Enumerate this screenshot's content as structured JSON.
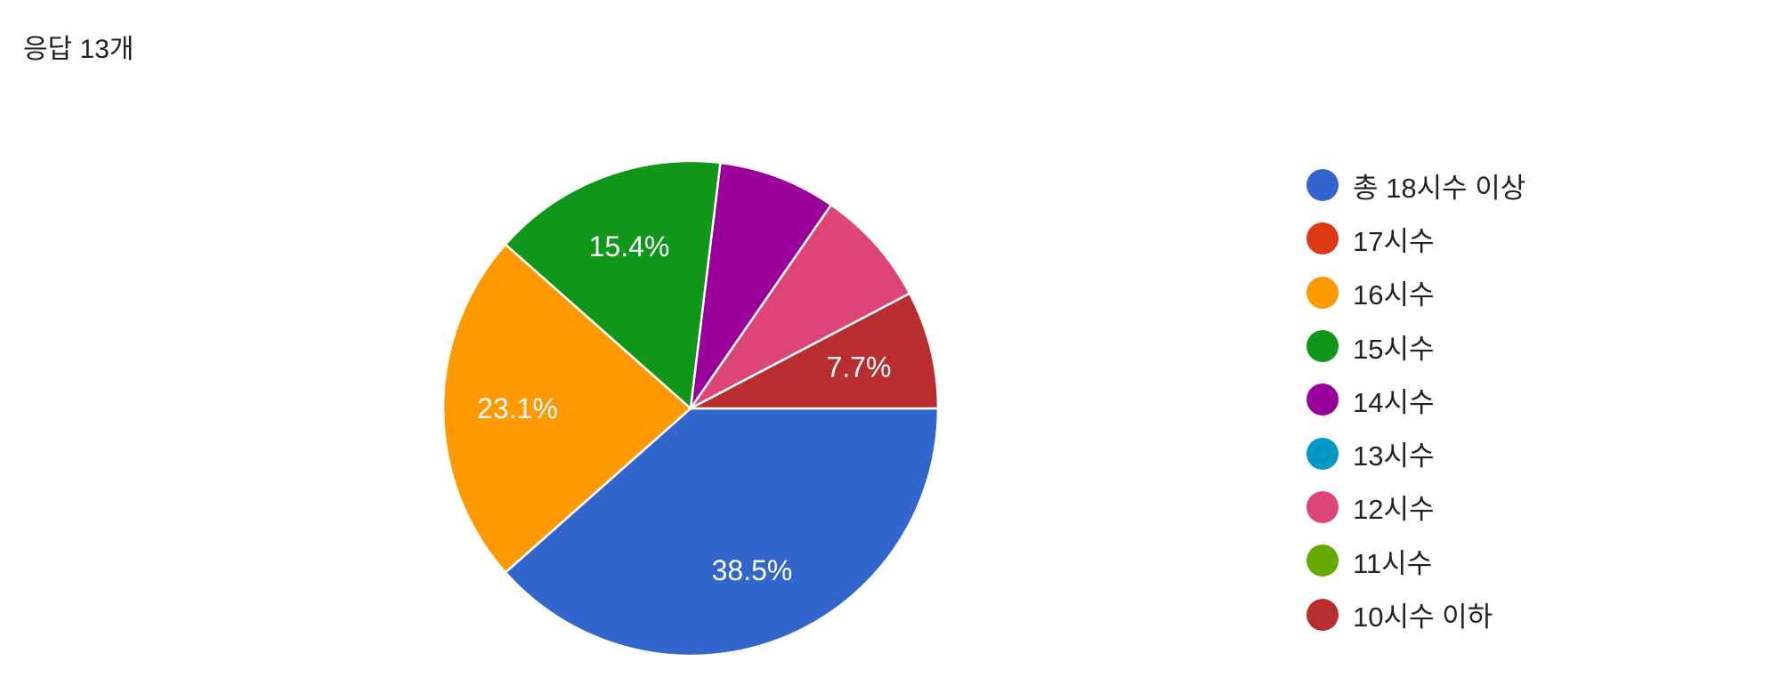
{
  "header": {
    "title": "응답 13개"
  },
  "chart_data": {
    "type": "pie",
    "total_responses": 13,
    "categories": [
      "총 18시수 이상",
      "17시수",
      "16시수",
      "15시수",
      "14시수",
      "13시수",
      "12시수",
      "11시수",
      "10시수 이하"
    ],
    "values": [
      5,
      0,
      3,
      2,
      1,
      0,
      1,
      0,
      1
    ],
    "percent_labels": [
      "38.5%",
      "",
      "23.1%",
      "15.4%",
      "",
      "",
      "",
      "",
      "7.7%"
    ],
    "colors": [
      "#3366cc",
      "#dc3912",
      "#ff9900",
      "#109618",
      "#990099",
      "#0099c6",
      "#dd4477",
      "#66aa00",
      "#b82e2e"
    ],
    "legend_position": "right",
    "start_angle_deg": 90
  }
}
